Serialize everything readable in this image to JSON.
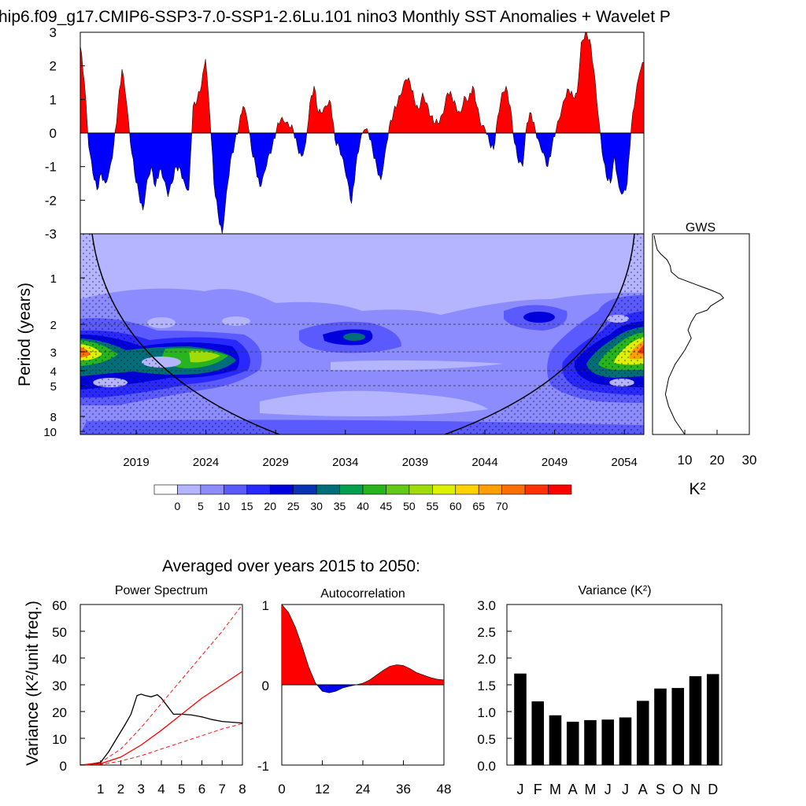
{
  "title": "hip6.f09_g17.CMIP6-SSP3-7.0-SSP1-2.6Lu.101 nino3 Monthly SST Anomalies + Wavelet P",
  "colors": {
    "positive": "#ff0000",
    "negative": "#0000ff"
  },
  "chart_data": [
    {
      "id": "anomaly",
      "type": "area",
      "ylim": [
        -3,
        3
      ],
      "yticks": [
        "3",
        "2",
        "1",
        "0",
        "-1",
        "-2",
        "-3"
      ],
      "xlim": [
        2015,
        2055.5
      ],
      "x": [
        2015.0,
        2015.3,
        2015.6,
        2015.9,
        2016.2,
        2016.5,
        2016.8,
        2017.1,
        2017.4,
        2017.7,
        2018.0,
        2018.3,
        2018.6,
        2018.9,
        2019.2,
        2019.5,
        2019.8,
        2020.1,
        2020.4,
        2020.7,
        2021.0,
        2021.3,
        2021.6,
        2021.9,
        2022.2,
        2022.5,
        2022.8,
        2023.1,
        2023.4,
        2023.7,
        2024.0,
        2024.3,
        2024.6,
        2024.9,
        2025.2,
        2025.5,
        2025.8,
        2026.1,
        2026.4,
        2026.7,
        2027.0,
        2027.3,
        2027.6,
        2027.9,
        2028.2,
        2028.5,
        2028.8,
        2029.1,
        2029.4,
        2029.7,
        2030.0,
        2030.3,
        2030.6,
        2030.9,
        2031.2,
        2031.5,
        2031.8,
        2032.1,
        2032.4,
        2032.7,
        2033.0,
        2033.3,
        2033.6,
        2033.9,
        2034.2,
        2034.5,
        2034.8,
        2035.1,
        2035.4,
        2035.7,
        2036.0,
        2036.3,
        2036.6,
        2036.9,
        2037.2,
        2037.5,
        2037.8,
        2038.1,
        2038.4,
        2038.7,
        2039.0,
        2039.3,
        2039.6,
        2039.9,
        2040.2,
        2040.5,
        2040.8,
        2041.1,
        2041.4,
        2041.7,
        2042.0,
        2042.3,
        2042.6,
        2042.9,
        2043.2,
        2043.5,
        2043.8,
        2044.1,
        2044.4,
        2044.7,
        2045.0,
        2045.3,
        2045.6,
        2045.9,
        2046.2,
        2046.5,
        2046.8,
        2047.1,
        2047.4,
        2047.7,
        2048.0,
        2048.3,
        2048.6,
        2048.9,
        2049.2,
        2049.5,
        2049.8,
        2050.1,
        2050.4,
        2050.7,
        2051.0,
        2051.3,
        2051.6,
        2051.9,
        2052.2,
        2052.5,
        2052.8,
        2053.1,
        2053.4,
        2053.7,
        2054.0,
        2054.3,
        2054.6,
        2054.9,
        2055.2,
        2055.5
      ],
      "values": [
        2.6,
        1.5,
        -0.4,
        -1.2,
        -1.7,
        -1.2,
        -1.5,
        -1.1,
        -0.4,
        0.8,
        1.9,
        1.0,
        -0.3,
        -1.2,
        -1.8,
        -2.3,
        -1.4,
        -1.0,
        -1.6,
        -1.1,
        -1.4,
        -1.9,
        -1.5,
        -1.0,
        -1.1,
        -1.5,
        -1.7,
        0.8,
        1.0,
        1.4,
        2.2,
        0.6,
        -1.5,
        -2.4,
        -3.0,
        -1.8,
        -0.8,
        -0.3,
        0.2,
        0.8,
        0.4,
        -0.5,
        -1.0,
        -1.6,
        -1.2,
        -0.7,
        -0.4,
        0.1,
        0.4,
        0.3,
        0.2,
        0.1,
        -0.4,
        -0.7,
        -0.3,
        0.9,
        1.4,
        0.6,
        0.6,
        0.8,
        0.9,
        -0.2,
        -0.4,
        -0.8,
        -1.4,
        -2.1,
        -1.0,
        -0.3,
        0.1,
        0.0,
        -0.5,
        -1.0,
        -1.4,
        -0.6,
        0.2,
        0.6,
        0.9,
        1.2,
        1.6,
        1.5,
        1.0,
        0.7,
        1.2,
        0.9,
        0.5,
        0.3,
        0.3,
        0.6,
        1.2,
        1.1,
        0.8,
        0.6,
        1.1,
        1.0,
        1.4,
        0.8,
        0.2,
        0.1,
        -0.3,
        -0.5,
        0.5,
        1.2,
        1.4,
        0.8,
        -0.3,
        -0.9,
        -1.0,
        0.3,
        0.6,
        0.1,
        -0.3,
        -0.6,
        -1.0,
        -0.4,
        0.1,
        0.5,
        1.0,
        1.3,
        1.1,
        1.2,
        2.7,
        3.0,
        2.8,
        1.9,
        0.6,
        -0.6,
        -1.3,
        -1.5,
        -0.7,
        -1.6,
        -1.8,
        -1.5,
        0.2,
        1.1,
        1.8,
        2.1
      ]
    },
    {
      "id": "wavelet",
      "type": "heatmap",
      "ylabel": "Period (years)",
      "yticks": [
        "1",
        "2",
        "3",
        "4",
        "5",
        "8",
        "10"
      ],
      "xticks": [
        "2019",
        "2024",
        "2029",
        "2034",
        "2039",
        "2044",
        "2049",
        "2054"
      ],
      "colorbar_labels": [
        "0",
        "5",
        "10",
        "15",
        "20",
        "25",
        "30",
        "35",
        "40",
        "45",
        "50",
        "55",
        "60",
        "65",
        "70"
      ],
      "colorbar_colors": [
        "#ffffff",
        "#b4b4ff",
        "#8c8cff",
        "#5a5aff",
        "#2828ff",
        "#0000dc",
        "#0a32b4",
        "#006e78",
        "#00a050",
        "#28b41e",
        "#64c814",
        "#a0dc0a",
        "#dcf000",
        "#ffd200",
        "#ffa000",
        "#ff6e00",
        "#ff3200",
        "#ff0000"
      ]
    },
    {
      "id": "gws",
      "type": "line",
      "title": "GWS",
      "xlabel": "K²",
      "xticks": [
        "10",
        "20",
        "30"
      ],
      "xlim": [
        0,
        30
      ],
      "series": [
        {
          "x": [
            0.5,
            1,
            1.5,
            2.5,
            4.5,
            5.5,
            5.8,
            8,
            13,
            18,
            21,
            22,
            20,
            18,
            17,
            13.5,
            12,
            11,
            12,
            10,
            7,
            5,
            4,
            5,
            7,
            10
          ],
          "y": [
            0.08,
            0.5,
            0.8,
            1.0,
            1.3,
            1.6,
            1.9,
            2.2,
            2.5,
            2.8,
            3.0,
            3.2,
            3.4,
            3.6,
            3.8,
            4.0,
            4.4,
            4.8,
            5.2,
            5.8,
            6.5,
            7.2,
            8.0,
            8.6,
            9.3,
            10.0
          ]
        }
      ]
    },
    {
      "id": "power_spectrum",
      "type": "line",
      "title": "Power Spectrum",
      "ylabel": "Variance (K²/unit freq.)",
      "ylim": [
        0,
        60
      ],
      "yticks": [
        "60",
        "50",
        "40",
        "30",
        "20",
        "10",
        "0"
      ],
      "xlim": [
        0,
        8
      ],
      "xticks": [
        "1",
        "2",
        "3",
        "4",
        "5",
        "6",
        "7",
        "8"
      ],
      "series": [
        {
          "color": "#000000",
          "dash": false,
          "x": [
            0,
            0.3,
            0.6,
            1.0,
            1.4,
            1.8,
            2.2,
            2.5,
            2.8,
            3.0,
            3.2,
            3.5,
            3.8,
            4.0,
            4.3,
            4.6,
            5.0,
            5.5,
            6.0,
            6.5,
            7.0,
            7.5,
            8.0
          ],
          "y": [
            0,
            0.2,
            0.5,
            1.0,
            5,
            10,
            15,
            19,
            26,
            26.5,
            26,
            25.5,
            26.3,
            25,
            22,
            19,
            19,
            18.7,
            18,
            17,
            16.3,
            16,
            15.7
          ]
        },
        {
          "color": "#ff0000",
          "dash": false,
          "x": [
            0,
            1,
            2,
            3,
            4,
            5,
            6,
            7,
            8
          ],
          "y": [
            0,
            0.5,
            3,
            7.5,
            13,
            19,
            25,
            30,
            35
          ]
        },
        {
          "color": "#ff0000",
          "dash": true,
          "x": [
            0,
            1,
            2,
            3,
            4,
            5,
            6,
            7,
            8
          ],
          "y": [
            0,
            1,
            6,
            14,
            23,
            32,
            41,
            50,
            60
          ]
        },
        {
          "color": "#ff0000",
          "dash": true,
          "x": [
            0,
            1,
            2,
            3,
            4,
            5,
            6,
            7,
            8
          ],
          "y": [
            0,
            0.2,
            1.5,
            3.5,
            6,
            8.5,
            11,
            13.5,
            15.5
          ]
        }
      ]
    },
    {
      "id": "autocorrelation",
      "type": "area",
      "title": "Autocorrelation",
      "ylim": [
        -1,
        1
      ],
      "yticks": [
        "1",
        "0",
        "-1"
      ],
      "xlim": [
        0,
        48
      ],
      "xticks": [
        "0",
        "12",
        "24",
        "36",
        "48"
      ],
      "x": [
        0,
        2,
        4,
        6,
        8,
        10,
        12,
        14,
        16,
        18,
        20,
        22,
        24,
        26,
        28,
        30,
        32,
        34,
        36,
        38,
        40,
        42,
        44,
        46,
        48
      ],
      "values": [
        1.0,
        0.9,
        0.72,
        0.48,
        0.22,
        0.02,
        -0.08,
        -0.1,
        -0.08,
        -0.04,
        -0.02,
        0.0,
        0.02,
        0.06,
        0.12,
        0.18,
        0.23,
        0.25,
        0.24,
        0.2,
        0.15,
        0.12,
        0.09,
        0.07,
        0.06
      ]
    },
    {
      "id": "variance",
      "type": "bar",
      "title": "Variance (K²)",
      "ylim": [
        0,
        3
      ],
      "yticks": [
        "3.0",
        "2.5",
        "2.0",
        "1.5",
        "1.0",
        "0.5",
        "0.0"
      ],
      "categories": [
        "J",
        "F",
        "M",
        "A",
        "M",
        "J",
        "J",
        "A",
        "S",
        "O",
        "N",
        "D"
      ],
      "values": [
        1.71,
        1.19,
        0.93,
        0.81,
        0.84,
        0.85,
        0.89,
        1.2,
        1.43,
        1.44,
        1.66,
        1.7
      ]
    }
  ],
  "footer": {
    "subtitle": "Averaged over years 2015 to 2050:"
  }
}
